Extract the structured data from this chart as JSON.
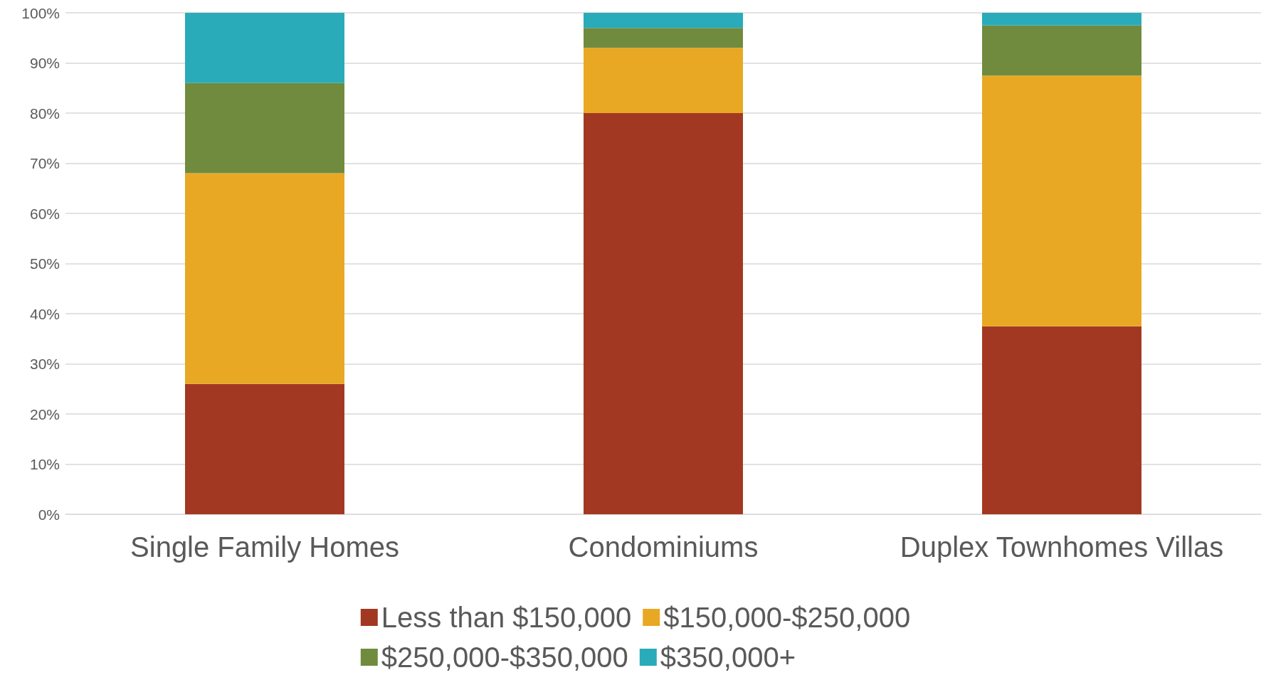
{
  "chart_data": {
    "type": "bar",
    "stacked": true,
    "categories": [
      "Single Family Homes",
      "Condominiums",
      "Duplex Townhomes Villas"
    ],
    "series": [
      {
        "name": "Less than $150,000",
        "color": "#a33822",
        "values": [
          26,
          80,
          37.5
        ]
      },
      {
        "name": "$150,000-$250,000",
        "color": "#e9a823",
        "values": [
          42,
          13,
          50
        ]
      },
      {
        "name": "$250,000-$350,000",
        "color": "#708b3e",
        "values": [
          18,
          4,
          10
        ]
      },
      {
        "name": "$350,000+",
        "color": "#2aabb9",
        "values": [
          14,
          3,
          2.5
        ]
      }
    ],
    "ylim": [
      0,
      100
    ],
    "yticks": [
      {
        "value": 0,
        "label": "0%"
      },
      {
        "value": 10,
        "label": "10%"
      },
      {
        "value": 20,
        "label": "20%"
      },
      {
        "value": 30,
        "label": "30%"
      },
      {
        "value": 40,
        "label": "40%"
      },
      {
        "value": 50,
        "label": "50%"
      },
      {
        "value": 60,
        "label": "60%"
      },
      {
        "value": 70,
        "label": "70%"
      },
      {
        "value": 80,
        "label": "80%"
      },
      {
        "value": 90,
        "label": "90%"
      },
      {
        "value": 100,
        "label": "100%"
      }
    ],
    "grid": "y",
    "legend": "bottom"
  }
}
